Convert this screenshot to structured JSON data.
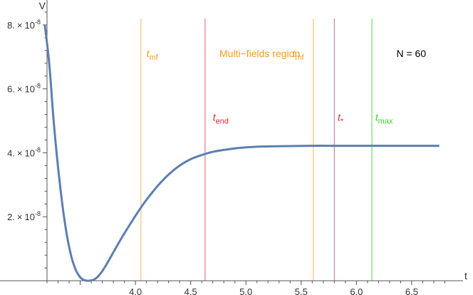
{
  "chart_data": {
    "type": "line",
    "xlabel": "t",
    "ylabel": "V",
    "xlim": [
      3.2,
      6.9
    ],
    "ylim": [
      0,
      8.6e-08
    ],
    "x_ticks": [
      {
        "value": 4.0,
        "label": "4.0"
      },
      {
        "value": 4.5,
        "label": "4.5"
      },
      {
        "value": 5.0,
        "label": "5.0"
      },
      {
        "value": 5.5,
        "label": "5.5"
      },
      {
        "value": 6.0,
        "label": "6.0"
      },
      {
        "value": 6.5,
        "label": "6.5"
      }
    ],
    "y_ticks": [
      {
        "value": 2e-08,
        "mantissa": "2.",
        "exponent": "-8"
      },
      {
        "value": 4e-08,
        "mantissa": "4.",
        "exponent": "-8"
      },
      {
        "value": 6e-08,
        "mantissa": "6.",
        "exponent": "-8"
      },
      {
        "value": 8e-08,
        "mantissa": "8.",
        "exponent": "-8"
      }
    ],
    "series": [
      {
        "color": "#5b7fb0",
        "x": [
          3.18,
          3.22,
          3.26,
          3.3,
          3.34,
          3.38,
          3.42,
          3.46,
          3.5,
          3.54,
          3.58,
          3.62,
          3.66,
          3.7,
          3.75,
          3.8,
          3.85,
          3.9,
          3.95,
          4.0,
          4.05,
          4.1,
          4.2,
          4.3,
          4.4,
          4.5,
          4.6,
          4.7,
          4.8,
          4.9,
          5.0,
          5.1,
          5.2,
          5.4,
          5.6,
          5.8,
          6.0,
          6.2,
          6.4,
          6.6,
          6.75
        ],
        "y": [
          8e-08,
          6.8e-08,
          5e-08,
          3.55e-08,
          2.35e-08,
          1.42e-08,
          7.6e-09,
          3.4e-09,
          1.1e-09,
          1.5e-10,
          2e-11,
          2.8e-10,
          1.3e-09,
          3e-09,
          5.8e-09,
          8.9e-09,
          1.19e-08,
          1.48e-08,
          1.76e-08,
          2.03e-08,
          2.29e-08,
          2.53e-08,
          2.96e-08,
          3.32e-08,
          3.6e-08,
          3.8e-08,
          3.93e-08,
          4.03e-08,
          4.09e-08,
          4.14e-08,
          4.17e-08,
          4.19e-08,
          4.2e-08,
          4.21e-08,
          4.22e-08,
          4.22e-08,
          4.22e-08,
          4.22e-08,
          4.22e-08,
          4.22e-08,
          4.22e-08
        ]
      }
    ],
    "vlines": [
      {
        "x": 4.05,
        "color": "#f5c37a"
      },
      {
        "x": 4.63,
        "color": "#e8798e"
      },
      {
        "x": 5.61,
        "color": "#f5c37a"
      },
      {
        "x": 5.8,
        "color": "#c47fb0"
      },
      {
        "x": 6.14,
        "color": "#7ad96d"
      }
    ],
    "annotations": [
      {
        "id": "tmf-left",
        "main": "t",
        "sub": "mf",
        "color": "#f29c1c",
        "x": 4.1,
        "y": 7e-08
      },
      {
        "id": "region-label",
        "text": "Multi−fields region",
        "color": "#f29c1c",
        "x": 4.76,
        "y": 7e-08
      },
      {
        "id": "tmf-right",
        "main": "t",
        "sub": "mf",
        "color": "#f29c1c",
        "x": 5.42,
        "y": 7e-08
      },
      {
        "id": "tend",
        "main": "t",
        "sub": "end",
        "color": "#e32630",
        "x": 4.7,
        "y": 5e-08
      },
      {
        "id": "tstar",
        "main": "t",
        "sub": "*",
        "color": "#e32630",
        "x": 5.83,
        "y": 5e-08
      },
      {
        "id": "tmax",
        "main": "t",
        "sub": "max",
        "color": "#37d62a",
        "x": 6.17,
        "y": 5e-08
      },
      {
        "id": "n-label",
        "text": "N = 60",
        "color": "#000000",
        "x": 6.63,
        "y": 7e-08
      }
    ],
    "grid": false,
    "legend": "none"
  }
}
